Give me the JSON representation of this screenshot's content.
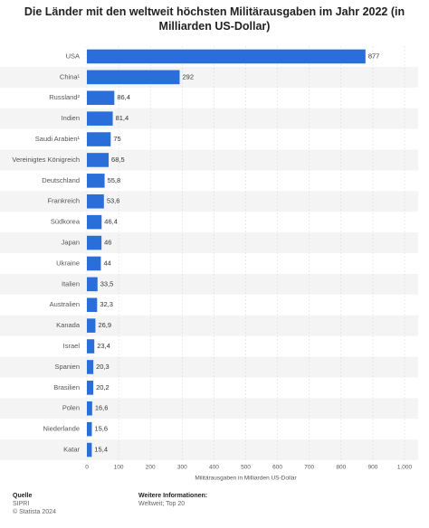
{
  "chart_data": {
    "type": "bar",
    "orientation": "horizontal",
    "title": "Die Länder mit den weltweit höchsten Militärausgaben im Jahr 2022 (in Milliarden US-Dollar)",
    "categories": [
      "USA",
      "China¹",
      "Russland²",
      "Indien",
      "Saudi Arabien¹",
      "Vereinigtes Königreich",
      "Deutschland",
      "Frankreich",
      "Südkorea",
      "Japan",
      "Ukraine",
      "Italien",
      "Australien",
      "Kanada",
      "Israel",
      "Spanien",
      "Brasilien",
      "Polen",
      "Niederlande",
      "Katar"
    ],
    "values": [
      877,
      292,
      86.4,
      81.4,
      75,
      68.5,
      55.8,
      53.6,
      46.4,
      46,
      44,
      33.5,
      32.3,
      26.9,
      23.4,
      20.3,
      20.2,
      16.6,
      15.6,
      15.4
    ],
    "value_labels": [
      "877",
      "292",
      "86,4",
      "81,4",
      "75",
      "68,5",
      "55,8",
      "53,6",
      "46,4",
      "46",
      "44",
      "33,5",
      "32,3",
      "26,9",
      "23,4",
      "20,3",
      "20,2",
      "16,6",
      "15,6",
      "15,4"
    ],
    "color": "#2a6fd9",
    "xlabel": "Militärausgaben in Milliarden US-Dollar",
    "xlim": [
      0,
      1000
    ],
    "xticks": [
      0,
      100,
      200,
      300,
      400,
      500,
      600,
      700,
      800,
      900,
      {
        "value": 1000,
        "label": "1.000"
      }
    ],
    "grid": true
  },
  "footer": {
    "source_label": "Quelle",
    "source": "SIPRI",
    "copyright": "© Statista 2024",
    "info_label": "Weitere Informationen:",
    "info": "Weltweit; Top 20"
  }
}
